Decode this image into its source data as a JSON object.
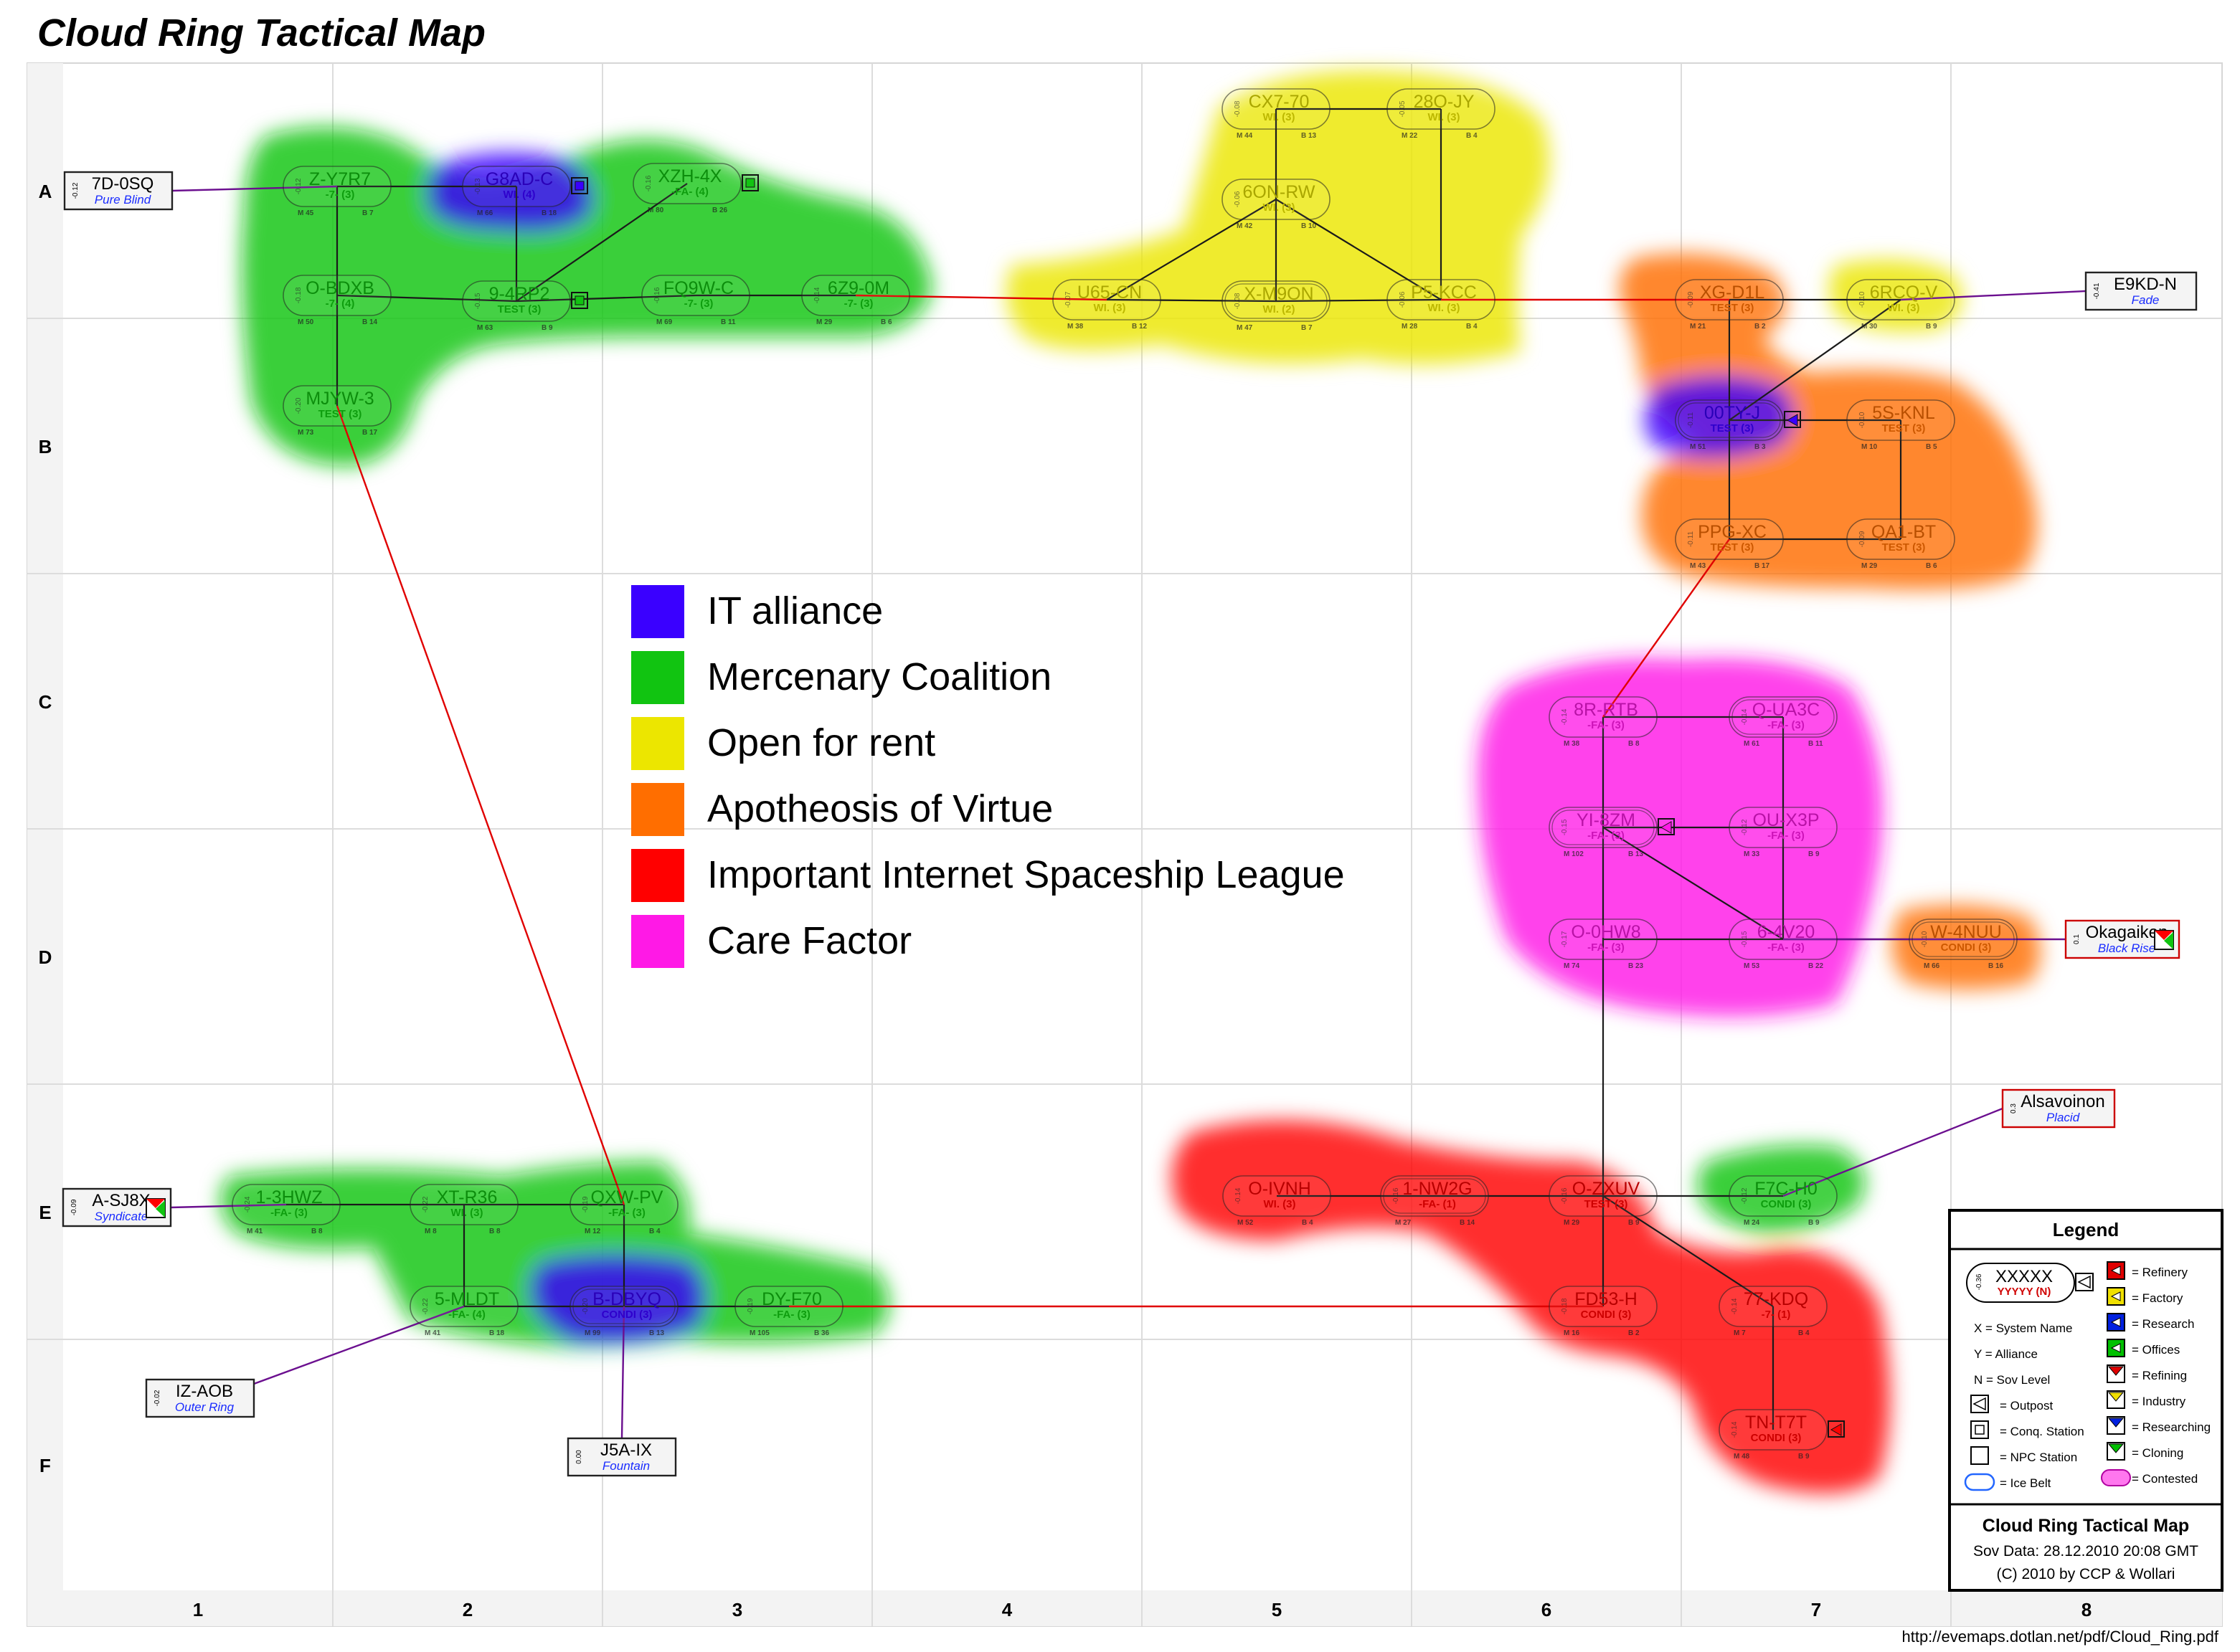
{
  "title": "Cloud Ring Tactical Map",
  "url": "http://evemaps.dotlan.net/pdf/Cloud_Ring.pdf",
  "rows": [
    "A",
    "B",
    "C",
    "D",
    "E",
    "F"
  ],
  "cols": [
    "1",
    "2",
    "3",
    "4",
    "5",
    "6",
    "7",
    "8"
  ],
  "colors": {
    "it": "#3a00ff",
    "merc": "#11c411",
    "rent": "#ece600",
    "apo": "#ff6e00",
    "iisl": "#ff0000",
    "care": "#ff19e6"
  },
  "alliance_legend": [
    {
      "key": "it",
      "label": "IT alliance"
    },
    {
      "key": "merc",
      "label": "Mercenary Coalition"
    },
    {
      "key": "rent",
      "label": "Open for rent"
    },
    {
      "key": "apo",
      "label": "Apotheosis of Virtue"
    },
    {
      "key": "iisl",
      "label": "Important Internet Spaceship League"
    },
    {
      "key": "care",
      "label": "Care Factor"
    }
  ],
  "systems": [
    {
      "id": "Z-Y7R7",
      "alliance": "-7- (3)",
      "m": "M 45",
      "b": "B 7",
      "sec": "-0.12",
      "color": "merc"
    },
    {
      "id": "G8AD-C",
      "alliance": "WI. (4)",
      "m": "M 66",
      "b": "B 18",
      "sec": "-0.13",
      "color": "it"
    },
    {
      "id": "XZH-4X",
      "alliance": "-FA- (4)",
      "m": "M 80",
      "b": "B 26",
      "sec": "-0.16",
      "color": "merc"
    },
    {
      "id": "O-BDXB",
      "alliance": "-7- (4)",
      "m": "M 50",
      "b": "B 14",
      "sec": "-0.18",
      "color": "merc"
    },
    {
      "id": "9-4RP2",
      "alliance": "TEST (3)",
      "m": "M 63",
      "b": "B 9",
      "sec": "-0.15",
      "color": "merc"
    },
    {
      "id": "FQ9W-C",
      "alliance": "-7- (3)",
      "m": "M 69",
      "b": "B 11",
      "sec": "-0.16",
      "color": "merc"
    },
    {
      "id": "6Z9-0M",
      "alliance": "-7- (3)",
      "m": "M 29",
      "b": "B 6",
      "sec": "-0.14",
      "color": "merc"
    },
    {
      "id": "MJYW-3",
      "alliance": "TEST (3)",
      "m": "M 73",
      "b": "B 17",
      "sec": "-0.20",
      "color": "merc"
    },
    {
      "id": "CX7-70",
      "alliance": "WI. (3)",
      "m": "M 44",
      "b": "B 13",
      "sec": "-0.08",
      "color": "rent"
    },
    {
      "id": "28O-JY",
      "alliance": "WI. (3)",
      "m": "M 22",
      "b": "B 4",
      "sec": "-0.05",
      "color": "rent"
    },
    {
      "id": "6ON-RW",
      "alliance": "WI. (3)",
      "m": "M 42",
      "b": "B 10",
      "sec": "-0.06",
      "color": "rent"
    },
    {
      "id": "U65-CN",
      "alliance": "WI. (3)",
      "m": "M 38",
      "b": "B 12",
      "sec": "-0.07",
      "color": "rent"
    },
    {
      "id": "X-M9ON",
      "alliance": "WI. (2)",
      "m": "M 47",
      "b": "B 7",
      "sec": "-0.08",
      "color": "rent"
    },
    {
      "id": "P5-KCC",
      "alliance": "WI. (3)",
      "m": "M 28",
      "b": "B 4",
      "sec": "-0.06",
      "color": "rent"
    },
    {
      "id": "XG-D1L",
      "alliance": "TEST (3)",
      "m": "M 21",
      "b": "B 2",
      "sec": "-0.09",
      "color": "apo"
    },
    {
      "id": "6RCQ-V",
      "alliance": "WI. (3)",
      "m": "M 30",
      "b": "B 9",
      "sec": "-0.10",
      "color": "rent"
    },
    {
      "id": "00TY-J",
      "alliance": "TEST (3)",
      "m": "M 51",
      "b": "B 3",
      "sec": "-0.11",
      "color": "it"
    },
    {
      "id": "5S-KNL",
      "alliance": "TEST (3)",
      "m": "M 10",
      "b": "B 5",
      "sec": "-0.10",
      "color": "apo"
    },
    {
      "id": "PPG-XC",
      "alliance": "TEST (3)",
      "m": "M 43",
      "b": "B 17",
      "sec": "-0.11",
      "color": "apo"
    },
    {
      "id": "QA1-BT",
      "alliance": "TEST (3)",
      "m": "M 29",
      "b": "B 6",
      "sec": "-0.09",
      "color": "apo"
    },
    {
      "id": "8R-RTB",
      "alliance": "-FA- (3)",
      "m": "M 38",
      "b": "B 8",
      "sec": "-0.14",
      "color": "care"
    },
    {
      "id": "Q-UA3C",
      "alliance": "-FA- (3)",
      "m": "M 61",
      "b": "B 11",
      "sec": "-0.14",
      "color": "care"
    },
    {
      "id": "YI-8ZM",
      "alliance": "-FA- (3)",
      "m": "M 102",
      "b": "B 13",
      "sec": "-0.15",
      "color": "care"
    },
    {
      "id": "OU-X3P",
      "alliance": "-FA- (3)",
      "m": "M 33",
      "b": "B 9",
      "sec": "-0.12",
      "color": "care"
    },
    {
      "id": "O-0HW8",
      "alliance": "-FA- (3)",
      "m": "M 74",
      "b": "B 23",
      "sec": "-0.17",
      "color": "care"
    },
    {
      "id": "6-4V20",
      "alliance": "-FA- (3)",
      "m": "M 53",
      "b": "B 22",
      "sec": "-0.15",
      "color": "care"
    },
    {
      "id": "W-4NUU",
      "alliance": "CONDI (3)",
      "m": "M 66",
      "b": "B 16",
      "sec": "-0.10",
      "color": "apo"
    },
    {
      "id": "1-3HWZ",
      "alliance": "-FA- (3)",
      "m": "M 41",
      "b": "B 8",
      "sec": "-0.24",
      "color": "merc"
    },
    {
      "id": "XT-R36",
      "alliance": "WI. (3)",
      "m": "M 8",
      "b": "B 8",
      "sec": "-0.22",
      "color": "merc"
    },
    {
      "id": "QXW-PV",
      "alliance": "-FA- (3)",
      "m": "M 12",
      "b": "B 4",
      "sec": "-0.19",
      "color": "merc"
    },
    {
      "id": "5-MLDT",
      "alliance": "-FA- (4)",
      "m": "M 41",
      "b": "B 18",
      "sec": "-0.22",
      "color": "merc"
    },
    {
      "id": "B-DBYQ",
      "alliance": "CONDI (3)",
      "m": "M 99",
      "b": "B 13",
      "sec": "-0.20",
      "color": "it"
    },
    {
      "id": "DY-F70",
      "alliance": "-FA- (3)",
      "m": "M 105",
      "b": "B 36",
      "sec": "-0.19",
      "color": "merc"
    },
    {
      "id": "O-IVNH",
      "alliance": "WI. (3)",
      "m": "M 52",
      "b": "B 4",
      "sec": "-0.14",
      "color": "iisl"
    },
    {
      "id": "1-NW2G",
      "alliance": "-FA- (1)",
      "m": "M 27",
      "b": "B 14",
      "sec": "-0.16",
      "color": "iisl"
    },
    {
      "id": "O-ZXUV",
      "alliance": "TEST (3)",
      "m": "M 29",
      "b": "B 9",
      "sec": "-0.16",
      "color": "iisl"
    },
    {
      "id": "F7C-H0",
      "alliance": "CONDI (3)",
      "m": "M 24",
      "b": "B 9",
      "sec": "-0.12",
      "color": "merc"
    },
    {
      "id": "FD53-H",
      "alliance": "CONDI (3)",
      "m": "M 16",
      "b": "B 2",
      "sec": "-0.18",
      "color": "iisl"
    },
    {
      "id": "77-KDQ",
      "alliance": "-7- (1)",
      "m": "M 7",
      "b": "B 4",
      "sec": "-0.14",
      "color": "iisl"
    },
    {
      "id": "TN-T7T",
      "alliance": "CONDI (3)",
      "m": "M 48",
      "b": "B 9",
      "sec": "-0.14",
      "color": "iisl"
    }
  ],
  "external_systems": [
    {
      "id": "7D-0SQ",
      "region": "Pure Blind",
      "sec": "-0.12"
    },
    {
      "id": "E9KD-N",
      "region": "Fade",
      "sec": "-0.41"
    },
    {
      "id": "Okagaiken",
      "region": "Black Rise",
      "sec": "0.1"
    },
    {
      "id": "Alsavoinon",
      "region": "Placid",
      "sec": "0.3"
    },
    {
      "id": "A-SJ8X",
      "region": "Syndicate",
      "sec": "-0.09"
    },
    {
      "id": "IZ-AOB",
      "region": "Outer Ring",
      "sec": "-0.02"
    },
    {
      "id": "J5A-IX",
      "region": "Fountain",
      "sec": "0.00"
    }
  ],
  "legend_box": {
    "title": "Legend",
    "sample_name": "XXXXX",
    "sample_alliance": "YYYYY (N)",
    "sample_sec": "-0.36",
    "left_items": [
      "X   = System Name",
      "Y   = Alliance",
      "N   = Sov Level",
      "= Outpost",
      "= Conq. Station",
      "= NPC Station",
      "= Ice Belt"
    ],
    "right_items": [
      "= Refinery",
      "= Factory",
      "= Research",
      "= Offices",
      "= Refining",
      "= Industry",
      "= Researching",
      "= Cloning",
      "= Contested"
    ],
    "footer_title": "Cloud Ring Tactical Map",
    "sov_data": "Sov Data: 28.12.2010 20:08 GMT",
    "copyright": "(C) 2010 by CCP & Wollari"
  }
}
